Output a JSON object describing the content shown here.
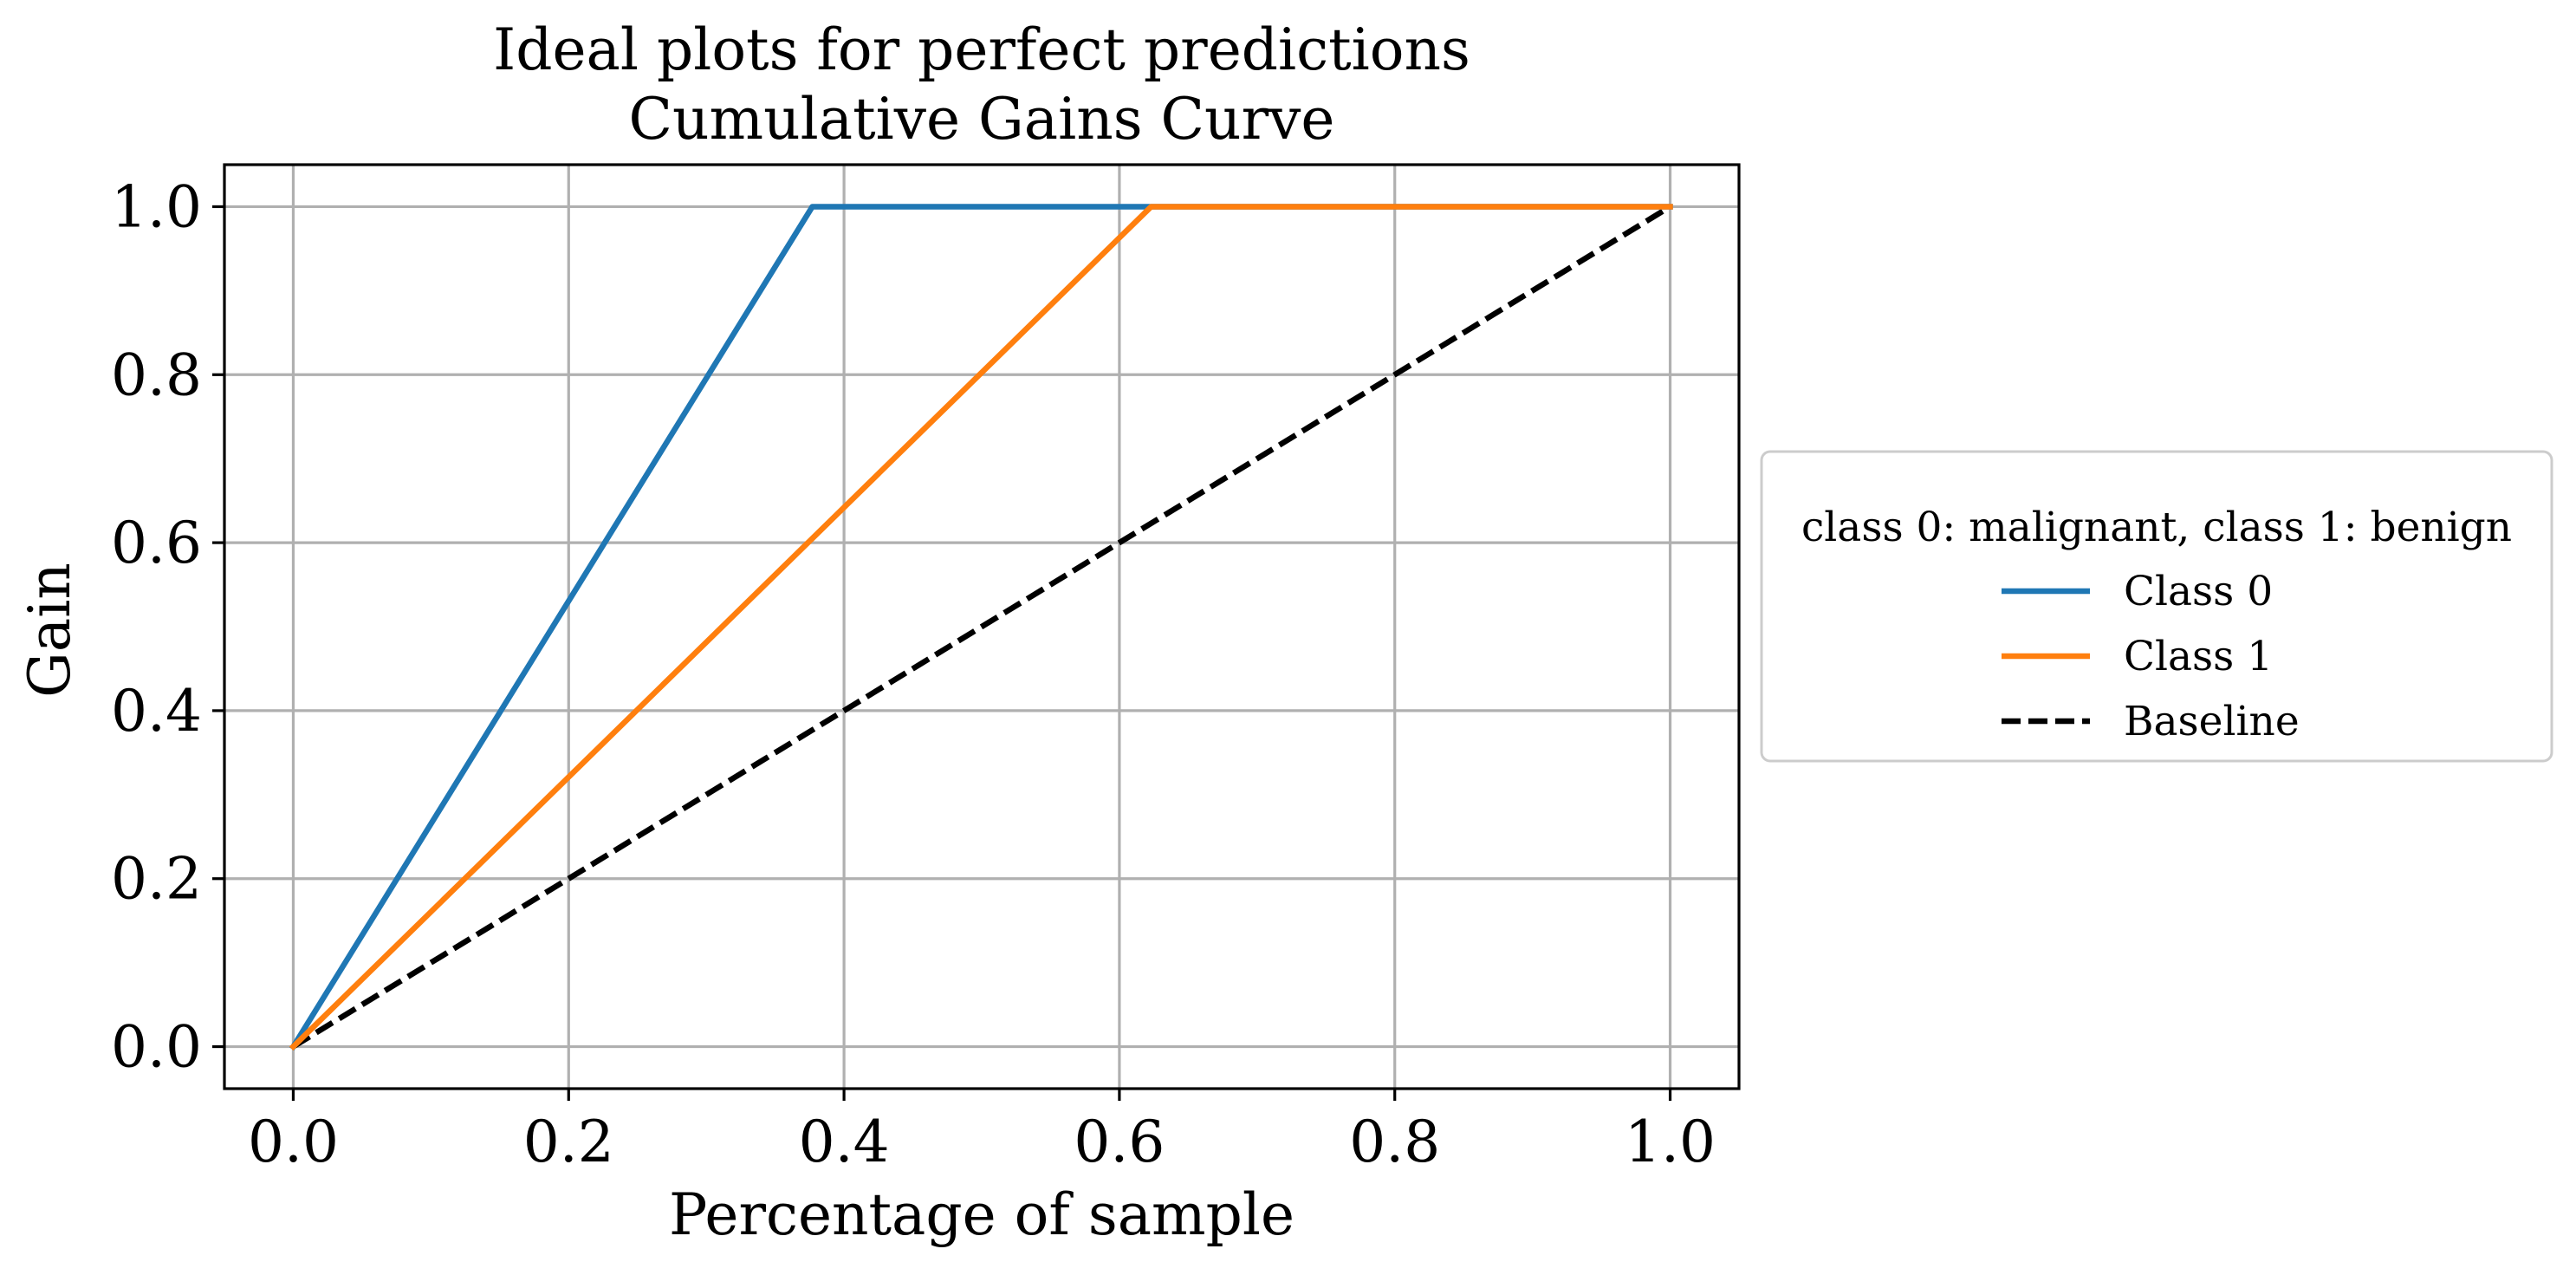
{
  "chart_data": {
    "type": "line",
    "title": "Ideal plots for perfect predictions",
    "subtitle": "Cumulative Gains Curve",
    "xlabel": "Percentage of sample",
    "ylabel": "Gain",
    "xlim": [
      -0.05,
      1.05
    ],
    "ylim": [
      -0.05,
      1.05
    ],
    "xticks": [
      0.0,
      0.2,
      0.4,
      0.6,
      0.8,
      1.0
    ],
    "xtick_labels": [
      "0.0",
      "0.2",
      "0.4",
      "0.6",
      "0.8",
      "1.0"
    ],
    "yticks": [
      0.0,
      0.2,
      0.4,
      0.6,
      0.8,
      1.0
    ],
    "ytick_labels": [
      "0.0",
      "0.2",
      "0.4",
      "0.6",
      "0.8",
      "1.0"
    ],
    "grid": true,
    "legend": {
      "title": "class 0: malignant, class 1: benign",
      "placement": "outside-right"
    },
    "series": [
      {
        "name": "Class 0",
        "color": "#1f77b4",
        "dash": "solid",
        "x": [
          0.0,
          0.377,
          1.0
        ],
        "y": [
          0.0,
          1.0,
          1.0
        ]
      },
      {
        "name": "Class 1",
        "color": "#ff7f0e",
        "dash": "solid",
        "x": [
          0.0,
          0.623,
          1.0
        ],
        "y": [
          0.0,
          1.0,
          1.0
        ]
      },
      {
        "name": "Baseline",
        "color": "#000000",
        "dash": "dashed",
        "x": [
          0.0,
          1.0
        ],
        "y": [
          0.0,
          1.0
        ]
      }
    ]
  }
}
